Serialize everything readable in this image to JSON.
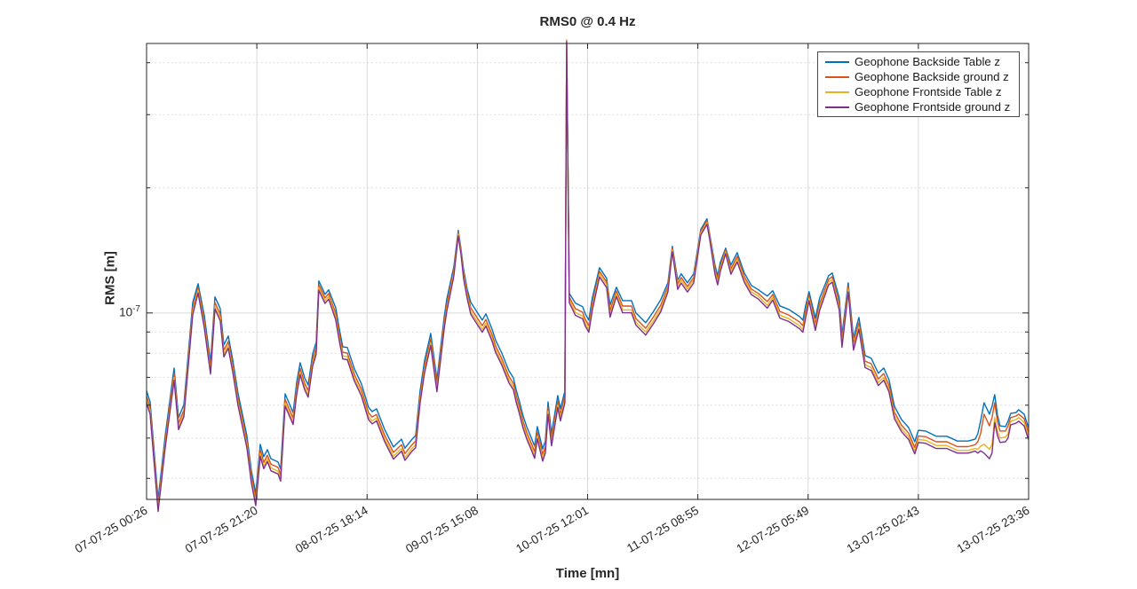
{
  "figure": {
    "title": "RMS0 @ 0.4 Hz",
    "x_axis_label": "Time [mn]",
    "y_axis_label": "RMS [m]",
    "y_tick_label": {
      "base": "10",
      "exponent": "-7"
    },
    "legend": {
      "position": "top-right",
      "items": [
        {
          "label": "Geophone Backside Table z",
          "color": "#0072BD"
        },
        {
          "label": "Geophone Backside ground z",
          "color": "#D95319"
        },
        {
          "label": "Geophone Frontside Table z",
          "color": "#EDB120"
        },
        {
          "label": "Geophone Frontside ground z",
          "color": "#7E2F8E"
        }
      ]
    }
  },
  "colors": {
    "background": "#ffffff",
    "axis": "#262626",
    "tick_label": "#262626",
    "grid_major": "#d9d9d9",
    "grid_minor": "#dedede",
    "series_blue": "#0072BD",
    "series_orange": "#D95319",
    "series_yellow": "#EDB120",
    "series_purple": "#7E2F8E"
  },
  "chart_data": {
    "type": "line",
    "title": "RMS0 @ 0.4 Hz",
    "xlabel": "Time [mn]",
    "ylabel": "RMS [m]",
    "yscale": "log",
    "grid": true,
    "legend_position": "top-right",
    "x_unit": "minutes from 07-07-25 00:26",
    "value_unit": "m",
    "value_scale": 1e-07,
    "xlim": [
      0,
      10032
    ],
    "ylim": [
      0.356,
      4.45
    ],
    "x_ticks": {
      "t": [
        0,
        1254,
        2508,
        3762,
        5016,
        6270,
        7524,
        8778,
        10032
      ],
      "labels": [
        "07-07-25 00:26",
        "07-07-25 21:20",
        "08-07-25 18:14",
        "09-07-25 15:08",
        "10-07-25 12:01",
        "11-07-25 08:55",
        "12-07-25 05:49",
        "13-07-25 02:43",
        "13-07-25 23:36"
      ]
    },
    "y_major_gridlines": [
      1.0
    ],
    "y_minor_gridlines": [
      4.0,
      3.0,
      2.0,
      0.9,
      0.8,
      0.7,
      0.6,
      0.5,
      0.4
    ],
    "t": [
      0,
      40,
      131,
      212,
      313,
      364,
      424,
      525,
      586,
      657,
      727,
      778,
      838,
      879,
      929,
      980,
      1040,
      1141,
      1192,
      1242,
      1293,
      1333,
      1374,
      1414,
      1495,
      1525,
      1576,
      1667,
      1707,
      1747,
      1798,
      1838,
      1889,
      1929,
      1959,
      2030,
      2071,
      2151,
      2192,
      2232,
      2283,
      2363,
      2444,
      2525,
      2565,
      2616,
      2707,
      2808,
      2899,
      2939,
      3020,
      3060,
      3111,
      3161,
      3232,
      3272,
      3303,
      3384,
      3414,
      3495,
      3545,
      3576,
      3606,
      3646,
      3687,
      3778,
      3818,
      3859,
      3929,
      3970,
      4040,
      4121,
      4172,
      4202,
      4242,
      4283,
      4323,
      4374,
      4414,
      4444,
      4505,
      4535,
      4566,
      4606,
      4677,
      4707,
      4757,
      4778,
      4808,
      4878,
      4959,
      4990,
      5030,
      5070,
      5151,
      5232,
      5272,
      5343,
      5414,
      5515,
      5566,
      5677,
      5768,
      5848,
      5929,
      5980,
      6040,
      6081,
      6152,
      6222,
      6303,
      6374,
      6404,
      6465,
      6495,
      6525,
      6586,
      6646,
      6717,
      6798,
      6878,
      6959,
      7060,
      7121,
      7202,
      7303,
      7424,
      7465,
      7495,
      7535,
      7606,
      7656,
      7757,
      7798,
      7878,
      7909,
      7980,
      8040,
      8101,
      8172,
      8242,
      8323,
      8384,
      8444,
      8505,
      8586,
      8667,
      8737,
      8778,
      8859,
      8980,
      9101,
      9222,
      9343,
      9424,
      9454,
      9485,
      9525,
      9586,
      9616,
      9646,
      9677,
      9707,
      9768,
      9798,
      9828,
      9889,
      9919,
      9980,
      10030
    ],
    "series": [
      {
        "name": "Geophone Backside Table z",
        "color": "#0072BD",
        "values": [
          0.649,
          0.611,
          0.356,
          0.507,
          0.737,
          0.56,
          0.602,
          1.061,
          1.176,
          0.985,
          0.763,
          1.093,
          1.025,
          0.838,
          0.88,
          0.771,
          0.642,
          0.507,
          0.417,
          0.368,
          0.483,
          0.451,
          0.469,
          0.446,
          0.438,
          0.421,
          0.639,
          0.576,
          0.681,
          0.759,
          0.698,
          0.671,
          0.797,
          0.85,
          1.194,
          1.109,
          1.137,
          1.03,
          0.915,
          0.829,
          0.826,
          0.734,
          0.675,
          0.593,
          0.579,
          0.588,
          0.525,
          0.476,
          0.497,
          0.473,
          0.497,
          0.507,
          0.649,
          0.767,
          0.893,
          0.771,
          0.691,
          0.976,
          1.077,
          1.292,
          1.58,
          1.425,
          1.273,
          1.142,
          1.061,
          0.99,
          0.961,
          0.995,
          0.915,
          0.859,
          0.801,
          0.726,
          0.698,
          0.655,
          0.611,
          0.565,
          0.533,
          0.502,
          0.478,
          0.533,
          0.471,
          0.492,
          0.611,
          0.512,
          0.633,
          0.588,
          0.649,
          4.35,
          1.114,
          1.056,
          1.035,
          0.995,
          0.961,
          1.087,
          1.285,
          1.212,
          1.045,
          1.153,
          1.071,
          1.071,
          1.0,
          0.947,
          1.01,
          1.077,
          1.182,
          1.447,
          1.2,
          1.242,
          1.182,
          1.242,
          1.588,
          1.685,
          1.55,
          1.304,
          1.229,
          1.324,
          1.432,
          1.304,
          1.397,
          1.248,
          1.165,
          1.137,
          1.098,
          1.131,
          1.04,
          1.02,
          0.981,
          0.961,
          1.04,
          1.125,
          0.971,
          1.087,
          1.229,
          1.248,
          1.087,
          0.884,
          1.182,
          0.871,
          0.976,
          0.79,
          0.778,
          0.716,
          0.737,
          0.691,
          0.596,
          0.554,
          0.53,
          0.49,
          0.522,
          0.52,
          0.505,
          0.505,
          0.492,
          0.492,
          0.497,
          0.512,
          0.549,
          0.608,
          0.571,
          0.596,
          0.636,
          0.568,
          0.535,
          0.533,
          0.549,
          0.573,
          0.576,
          0.585,
          0.571,
          0.53
        ]
      },
      {
        "name": "Geophone Backside ground z",
        "color": "#D95319",
        "values": [
          0.63,
          0.593,
          0.345,
          0.492,
          0.715,
          0.543,
          0.584,
          1.029,
          1.152,
          0.955,
          0.74,
          1.06,
          0.994,
          0.813,
          0.854,
          0.748,
          0.623,
          0.492,
          0.404,
          0.357,
          0.469,
          0.437,
          0.455,
          0.433,
          0.425,
          0.408,
          0.62,
          0.559,
          0.661,
          0.736,
          0.677,
          0.651,
          0.773,
          0.825,
          1.17,
          1.087,
          1.114,
          0.999,
          0.888,
          0.804,
          0.801,
          0.712,
          0.655,
          0.575,
          0.562,
          0.57,
          0.509,
          0.462,
          0.482,
          0.459,
          0.482,
          0.492,
          0.63,
          0.744,
          0.866,
          0.748,
          0.67,
          0.947,
          1.045,
          1.266,
          1.564,
          1.411,
          1.248,
          1.119,
          1.029,
          0.96,
          0.932,
          0.965,
          0.888,
          0.833,
          0.777,
          0.704,
          0.677,
          0.635,
          0.593,
          0.548,
          0.517,
          0.487,
          0.464,
          0.517,
          0.457,
          0.477,
          0.593,
          0.497,
          0.614,
          0.57,
          0.63,
          4.44,
          1.092,
          1.024,
          1.004,
          0.965,
          0.932,
          1.054,
          1.259,
          1.188,
          1.014,
          1.13,
          1.039,
          1.039,
          0.97,
          0.919,
          0.98,
          1.045,
          1.158,
          1.433,
          1.176,
          1.217,
          1.158,
          1.217,
          1.572,
          1.668,
          1.535,
          1.278,
          1.204,
          1.298,
          1.418,
          1.278,
          1.369,
          1.223,
          1.142,
          1.114,
          1.065,
          1.108,
          1.009,
          0.989,
          0.952,
          0.932,
          1.009,
          1.103,
          0.942,
          1.054,
          1.204,
          1.223,
          1.054,
          0.857,
          1.158,
          0.845,
          0.947,
          0.766,
          0.755,
          0.694,
          0.715,
          0.67,
          0.578,
          0.537,
          0.514,
          0.475,
          0.506,
          0.504,
          0.49,
          0.49,
          0.477,
          0.477,
          0.482,
          0.49,
          0.512,
          0.571,
          0.535,
          0.56,
          0.608,
          0.549,
          0.52,
          0.52,
          0.535,
          0.56,
          0.565,
          0.571,
          0.557,
          0.517
        ]
      },
      {
        "name": "Geophone Frontside Table z",
        "color": "#EDB120",
        "values": [
          0.617,
          0.58,
          0.338,
          0.482,
          0.7,
          0.532,
          0.572,
          1.008,
          1.135,
          0.936,
          0.725,
          1.038,
          0.974,
          0.796,
          0.836,
          0.732,
          0.61,
          0.482,
          0.396,
          0.35,
          0.459,
          0.428,
          0.446,
          0.424,
          0.416,
          0.4,
          0.607,
          0.547,
          0.647,
          0.721,
          0.663,
          0.637,
          0.757,
          0.808,
          1.152,
          1.07,
          1.097,
          0.979,
          0.869,
          0.788,
          0.785,
          0.697,
          0.641,
          0.563,
          0.55,
          0.559,
          0.499,
          0.452,
          0.472,
          0.449,
          0.472,
          0.482,
          0.617,
          0.729,
          0.848,
          0.732,
          0.656,
          0.927,
          1.023,
          1.247,
          1.548,
          1.397,
          1.228,
          1.102,
          1.008,
          0.941,
          0.913,
          0.945,
          0.869,
          0.816,
          0.761,
          0.69,
          0.663,
          0.622,
          0.58,
          0.537,
          0.506,
          0.477,
          0.454,
          0.506,
          0.447,
          0.467,
          0.58,
          0.486,
          0.601,
          0.559,
          0.617,
          4.55,
          1.075,
          1.003,
          0.983,
          0.945,
          0.913,
          1.033,
          1.24,
          1.17,
          0.993,
          1.113,
          1.017,
          1.017,
          0.95,
          0.9,
          0.96,
          1.023,
          1.141,
          1.418,
          1.158,
          1.199,
          1.141,
          1.199,
          1.556,
          1.651,
          1.519,
          1.258,
          1.186,
          1.278,
          1.403,
          1.258,
          1.348,
          1.204,
          1.124,
          1.097,
          1.043,
          1.091,
          0.988,
          0.969,
          0.932,
          0.913,
          0.988,
          1.086,
          0.922,
          1.033,
          1.186,
          1.204,
          1.033,
          0.84,
          1.141,
          0.827,
          0.927,
          0.751,
          0.739,
          0.68,
          0.7,
          0.656,
          0.566,
          0.526,
          0.504,
          0.466,
          0.496,
          0.494,
          0.48,
          0.48,
          0.467,
          0.467,
          0.472,
          0.47,
          0.478,
          0.483,
          0.47,
          0.483,
          0.56,
          0.52,
          0.5,
          0.503,
          0.512,
          0.549,
          0.554,
          0.56,
          0.546,
          0.507
        ]
      },
      {
        "name": "Geophone Frontside ground z",
        "color": "#7E2F8E",
        "values": [
          0.607,
          0.571,
          0.333,
          0.474,
          0.689,
          0.524,
          0.563,
          0.992,
          1.117,
          0.921,
          0.713,
          1.022,
          0.958,
          0.784,
          0.823,
          0.721,
          0.6,
          0.474,
          0.39,
          0.344,
          0.452,
          0.422,
          0.439,
          0.417,
          0.41,
          0.394,
          0.597,
          0.539,
          0.637,
          0.71,
          0.653,
          0.627,
          0.745,
          0.795,
          1.134,
          1.054,
          1.08,
          0.963,
          0.856,
          0.775,
          0.772,
          0.686,
          0.631,
          0.554,
          0.541,
          0.55,
          0.491,
          0.445,
          0.465,
          0.442,
          0.465,
          0.474,
          0.607,
          0.717,
          0.835,
          0.721,
          0.646,
          0.913,
          1.007,
          1.227,
          1.533,
          1.382,
          1.209,
          1.085,
          0.992,
          0.926,
          0.899,
          0.93,
          0.856,
          0.803,
          0.749,
          0.679,
          0.653,
          0.612,
          0.571,
          0.528,
          0.498,
          0.469,
          0.447,
          0.498,
          0.44,
          0.46,
          0.571,
          0.479,
          0.592,
          0.55,
          0.607,
          4.5,
          1.058,
          0.987,
          0.968,
          0.93,
          0.899,
          1.016,
          1.221,
          1.151,
          0.977,
          1.095,
          1.001,
          1.001,
          0.935,
          0.885,
          0.944,
          1.007,
          1.123,
          1.404,
          1.14,
          1.18,
          1.123,
          1.18,
          1.54,
          1.634,
          1.504,
          1.239,
          1.168,
          1.258,
          1.389,
          1.239,
          1.327,
          1.186,
          1.107,
          1.08,
          1.027,
          1.074,
          0.972,
          0.954,
          0.917,
          0.899,
          0.972,
          1.069,
          0.908,
          1.016,
          1.168,
          1.186,
          1.016,
          0.827,
          1.123,
          0.814,
          0.913,
          0.739,
          0.727,
          0.669,
          0.689,
          0.646,
          0.557,
          0.518,
          0.496,
          0.458,
          0.488,
          0.486,
          0.472,
          0.472,
          0.46,
          0.46,
          0.465,
          0.46,
          0.466,
          0.46,
          0.446,
          0.46,
          0.545,
          0.507,
          0.488,
          0.49,
          0.5,
          0.538,
          0.543,
          0.549,
          0.535,
          0.497
        ]
      }
    ]
  }
}
